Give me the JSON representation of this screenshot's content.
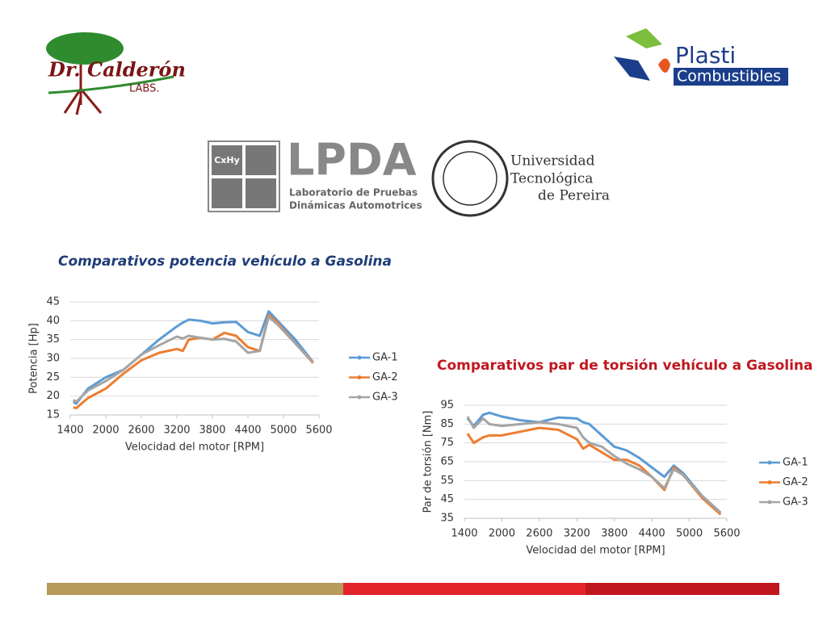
{
  "logos": {
    "calderon": {
      "name": "Dr. Calderón",
      "sub": "LABS."
    },
    "plasti": {
      "top": "Plasti",
      "bottom": "Combustibles"
    },
    "lpda": {
      "icon": "CxHy",
      "name": "LPDA",
      "line1": "Laboratorio de Pruebas",
      "line2": "Dinámicas Automotrices"
    },
    "utp": {
      "line1": "Universidad",
      "line2": "Tecnológica",
      "line3": "de Pereira"
    }
  },
  "chart_data": [
    {
      "type": "line",
      "title": "Comparativos potencia vehículo a Gasolina",
      "x_label": "Velocidad del motor [RPM]",
      "y_label": "Potencia [Hp]",
      "x": [
        1450,
        1500,
        1700,
        2000,
        2300,
        2600,
        2900,
        3200,
        3300,
        3400,
        3600,
        3800,
        4000,
        4200,
        4400,
        4600,
        4750,
        4900,
        5200,
        5500
      ],
      "xlim": [
        1400,
        5600
      ],
      "xticks": [
        1400,
        2000,
        2600,
        3200,
        3800,
        4400,
        5000,
        5600
      ],
      "ylim": [
        15,
        45
      ],
      "yticks": [
        15,
        20,
        25,
        30,
        35,
        40,
        45
      ],
      "grid": true,
      "legend": "right",
      "series": [
        {
          "name": "GA-1",
          "color": "#5b9bd5",
          "values": [
            18.5,
            18,
            22,
            25,
            27,
            31,
            35,
            38.5,
            39.5,
            40.3,
            40,
            39.3,
            39.6,
            39.7,
            37,
            36,
            42.5,
            40,
            35,
            29
          ]
        },
        {
          "name": "GA-2",
          "color": "#ed7d31",
          "values": [
            17,
            16.8,
            19.5,
            22,
            26,
            29.5,
            31.5,
            32.5,
            32,
            35,
            35.5,
            35,
            36.8,
            36,
            33,
            32,
            41.5,
            39.5,
            34,
            28.8
          ]
        },
        {
          "name": "GA-3",
          "color": "#a5a5a5",
          "values": [
            19,
            18.5,
            21.5,
            24,
            27,
            31,
            33.5,
            35.8,
            35.3,
            36,
            35.5,
            35,
            35.2,
            34.5,
            31.5,
            32,
            41,
            39,
            34,
            29
          ]
        }
      ]
    },
    {
      "type": "line",
      "title": "Comparativos par de torsión vehículo a Gasolina",
      "x_label": "Velocidad del motor [RPM]",
      "y_label": "Par de torsión [Nm]",
      "x": [
        1450,
        1550,
        1700,
        1800,
        2000,
        2300,
        2600,
        2900,
        3200,
        3300,
        3400,
        3600,
        3800,
        4000,
        4200,
        4400,
        4600,
        4750,
        4900,
        5200,
        5500
      ],
      "xlim": [
        1400,
        5600
      ],
      "xticks": [
        1400,
        2000,
        2600,
        3200,
        3800,
        4400,
        5000,
        5600
      ],
      "ylim": [
        35,
        95
      ],
      "yticks": [
        35,
        45,
        55,
        65,
        75,
        85,
        95
      ],
      "grid": true,
      "legend": "right",
      "series": [
        {
          "name": "GA-1",
          "color": "#5b9bd5",
          "values": [
            88,
            84,
            90,
            91,
            89,
            87,
            86,
            88.5,
            88,
            86,
            85,
            79,
            73,
            71,
            67,
            62,
            57,
            63,
            59,
            47,
            38
          ]
        },
        {
          "name": "GA-2",
          "color": "#ed7d31",
          "values": [
            80,
            75,
            78,
            79,
            79,
            81,
            83,
            82,
            77,
            72,
            74,
            70,
            66,
            66,
            63,
            57,
            50,
            62,
            58,
            46,
            37
          ]
        },
        {
          "name": "GA-3",
          "color": "#a5a5a5",
          "values": [
            89,
            83,
            88,
            85,
            84,
            85,
            86,
            85,
            83,
            78,
            75,
            73,
            68,
            64,
            61,
            57,
            51,
            61,
            58,
            47,
            38
          ]
        }
      ]
    }
  ]
}
